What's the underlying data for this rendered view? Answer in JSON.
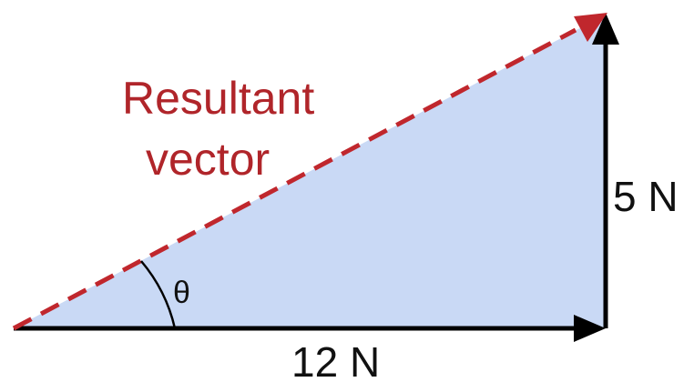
{
  "diagram": {
    "resultant_label_line1": "Resultant",
    "resultant_label_line2": "vector",
    "horizontal_label": "12 N",
    "vertical_label": "5 N",
    "angle_label": "θ"
  },
  "colors": {
    "triangle_fill": "#c9d9f5",
    "vector_stroke": "#000000",
    "resultant_stroke": "#c0272d",
    "resultant_text": "#b0252a",
    "text": "#111111"
  }
}
